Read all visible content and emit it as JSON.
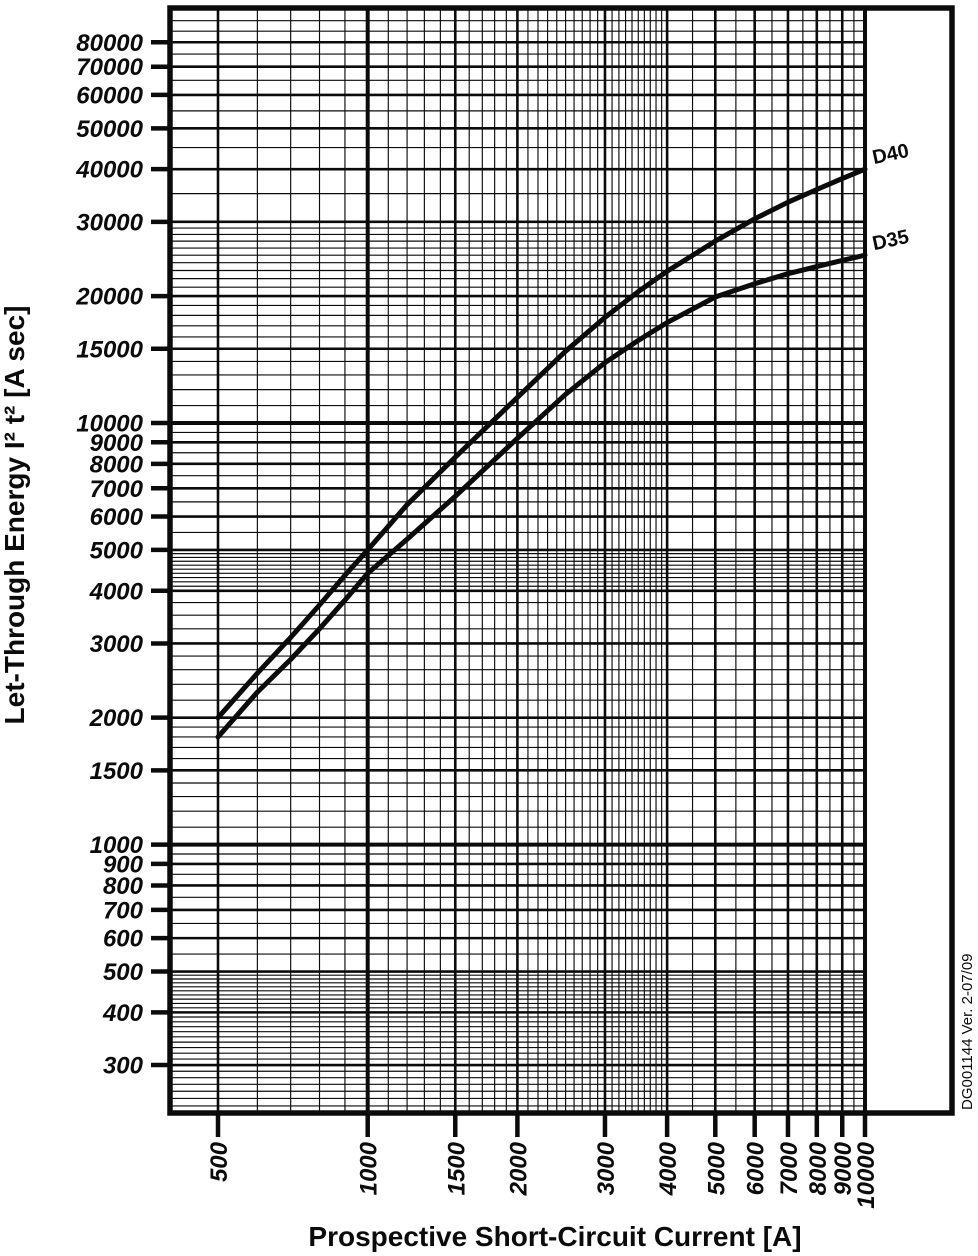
{
  "chart_data": {
    "type": "line",
    "title": "",
    "xlabel": "Prospective Short-Circuit Current [A]",
    "ylabel": "Let-Through Energy I² t² [A sec]",
    "watermark": "DG001144 Ver. 2-07/09",
    "x_scale": "log",
    "y_scale": "log",
    "grid": true,
    "x_range": [
      400,
      10000
    ],
    "y_range": [
      240,
      96000
    ],
    "x_ticks": [
      500,
      1000,
      1500,
      2000,
      3000,
      4000,
      5000,
      6000,
      7000,
      8000,
      9000,
      10000
    ],
    "y_ticks": [
      300,
      400,
      500,
      600,
      700,
      800,
      900,
      1000,
      1500,
      2000,
      3000,
      4000,
      5000,
      6000,
      7000,
      8000,
      9000,
      10000,
      15000,
      20000,
      30000,
      40000,
      50000,
      60000,
      70000,
      80000
    ],
    "legend_position": "labels-at-curve-ends",
    "line_color": "#000000",
    "series": [
      {
        "name": "D40",
        "x": [
          500,
          600,
          700,
          800,
          900,
          1000,
          1200,
          1500,
          2000,
          2500,
          3000,
          3500,
          4000,
          5000,
          6000,
          7000,
          8000,
          9000,
          10000
        ],
        "y": [
          2000,
          2550,
          3100,
          3700,
          4350,
          5000,
          6400,
          8300,
          11500,
          14800,
          17800,
          20500,
          22900,
          27000,
          30500,
          33400,
          35800,
          38000,
          40000
        ]
      },
      {
        "name": "D35",
        "x": [
          500,
          600,
          700,
          800,
          900,
          1000,
          1200,
          1500,
          2000,
          2500,
          3000,
          3500,
          4000,
          5000,
          6000,
          7000,
          8000,
          9000,
          10000
        ],
        "y": [
          1800,
          2300,
          2750,
          3250,
          3800,
          4400,
          5300,
          6700,
          9200,
          11700,
          13900,
          15700,
          17300,
          19900,
          21400,
          22600,
          23500,
          24300,
          25000
        ]
      }
    ]
  }
}
